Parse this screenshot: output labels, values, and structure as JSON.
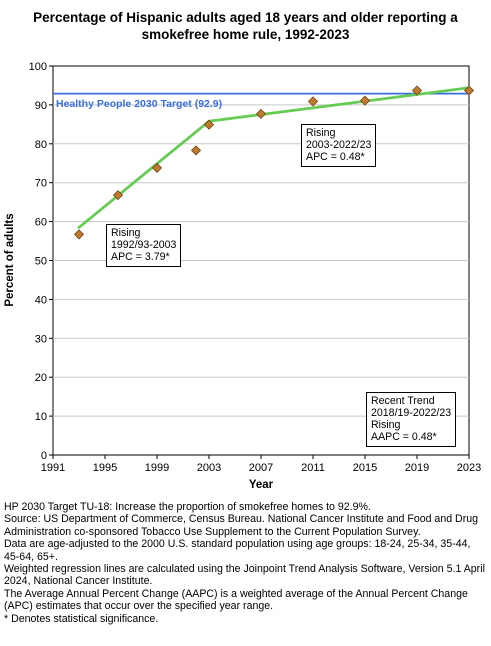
{
  "chart_data": {
    "type": "line",
    "title": "Percentage of Hispanic adults aged 18 years and older reporting a smokefree home rule, 1992-2023",
    "xlabel": "Year",
    "ylabel": "Percent of adults",
    "xlim": [
      1991,
      2023
    ],
    "ylim": [
      0,
      100
    ],
    "xticks": [
      1991,
      1995,
      1999,
      2003,
      2007,
      2011,
      2015,
      2019,
      2023
    ],
    "yticks": [
      0,
      10,
      20,
      30,
      40,
      50,
      60,
      70,
      80,
      90,
      100
    ],
    "grid": true,
    "observed": {
      "x": [
        1993,
        1996,
        1999,
        2002,
        2003,
        2007,
        2011,
        2015,
        2019,
        2023
      ],
      "y": [
        56.7,
        66.8,
        73.8,
        78.3,
        84.9,
        87.7,
        90.9,
        91.1,
        93.7,
        93.7
      ],
      "color": "#c07a2e"
    },
    "trend": {
      "x": [
        1993,
        2003,
        2023
      ],
      "y": [
        58.5,
        85.8,
        94.4
      ],
      "color": "#66cc55"
    },
    "target": {
      "value": 92.9,
      "label": "Healthy People 2030 Target (92.9)",
      "color": "#3a6fe0"
    },
    "annotations": [
      {
        "lines": [
          "Rising",
          "1992/93-2003",
          "APC =  3.79*"
        ]
      },
      {
        "lines": [
          "Rising",
          "2003-2022/23",
          "APC =  0.48*"
        ]
      },
      {
        "lines": [
          "Recent Trend",
          "2018/19-2022/23",
          "Rising",
          "AAPC =  0.48*"
        ]
      }
    ]
  },
  "footnotes": [
    "HP 2030 Target TU-18: Increase the proportion of smokefree homes to 92.9%.",
    "Source: US Department of Commerce, Census Bureau. National Cancer Institute and Food and Drug Administration co-sponsored Tobacco Use Supplement to the Current Population Survey.",
    "Data are age-adjusted to the 2000 U.S. standard population using age groups: 18-24, 25-34, 35-44, 45-64, 65+.",
    "Weighted regression lines are calculated using the Joinpoint Trend Analysis Software, Version 5.1 April 2024, National Cancer Institute.",
    "The Average Annual Percent Change (AAPC) is a weighted average of the Annual Percent Change (APC) estimates that occur over the specified year range.",
    "* Denotes statistical significance."
  ]
}
